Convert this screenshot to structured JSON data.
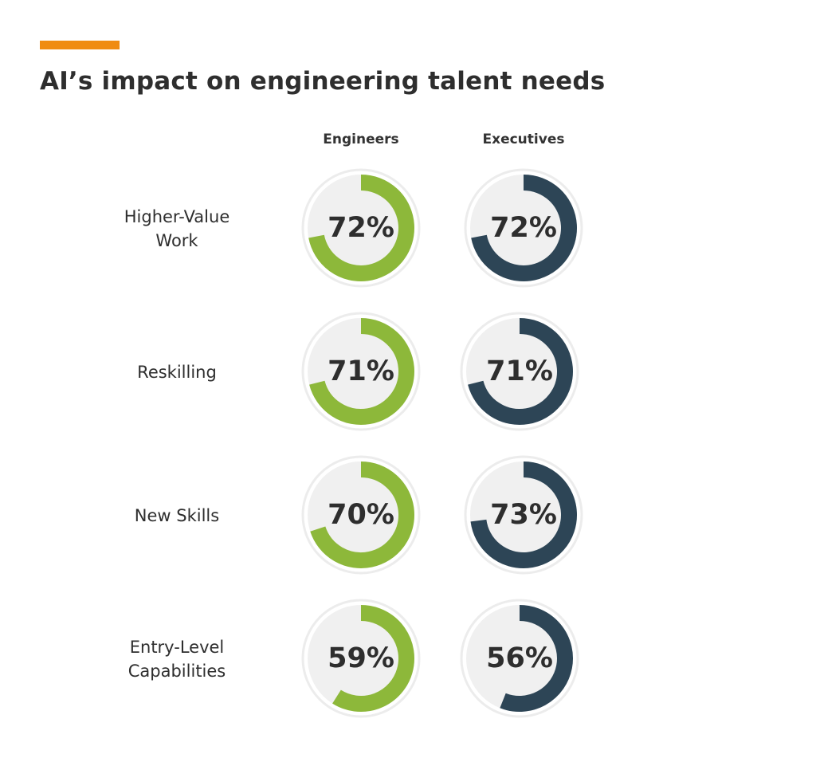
{
  "header": {
    "title": "AI’s impact on engineering talent needs",
    "accent_color": "#f08c12"
  },
  "chart_data": {
    "type": "donut",
    "title": "AI’s impact on engineering talent needs",
    "series": [
      {
        "name": "Engineers",
        "color": "#8db83a",
        "values": [
          72,
          71,
          70,
          59
        ]
      },
      {
        "name": "Executives",
        "color": "#2d4556",
        "values": [
          72,
          71,
          73,
          56
        ]
      }
    ],
    "categories": [
      [
        "Higher-Value",
        "Work"
      ],
      [
        "Reskilling"
      ],
      [
        "New Skills"
      ],
      [
        "Entry-Level",
        "Capabilities"
      ]
    ],
    "value_labels": {
      "Engineers": [
        "72%",
        "71%",
        "70%",
        "59%"
      ],
      "Executives": [
        "72%",
        "71%",
        "73%",
        "56%"
      ]
    },
    "range": [
      0,
      100
    ],
    "track_color": "#f0f0f0"
  }
}
